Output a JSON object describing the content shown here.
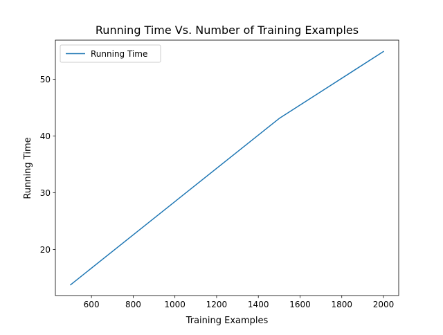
{
  "chart_data": {
    "type": "line",
    "title": "Running Time Vs. Number of Training Examples",
    "xlabel": "Training Examples",
    "ylabel": "Running Time",
    "xlim": [
      427,
      2073
    ],
    "ylim": [
      11.9,
      56.9
    ],
    "xticks": [
      600,
      800,
      1000,
      1200,
      1400,
      1600,
      1800,
      2000
    ],
    "yticks": [
      20,
      30,
      40,
      50
    ],
    "grid": false,
    "legend_position": "upper-left",
    "series": [
      {
        "name": "Running Time",
        "color": "#1f77b4",
        "x": [
          500,
          1500,
          2000
        ],
        "y": [
          13.8,
          43.1,
          54.9
        ]
      }
    ]
  }
}
